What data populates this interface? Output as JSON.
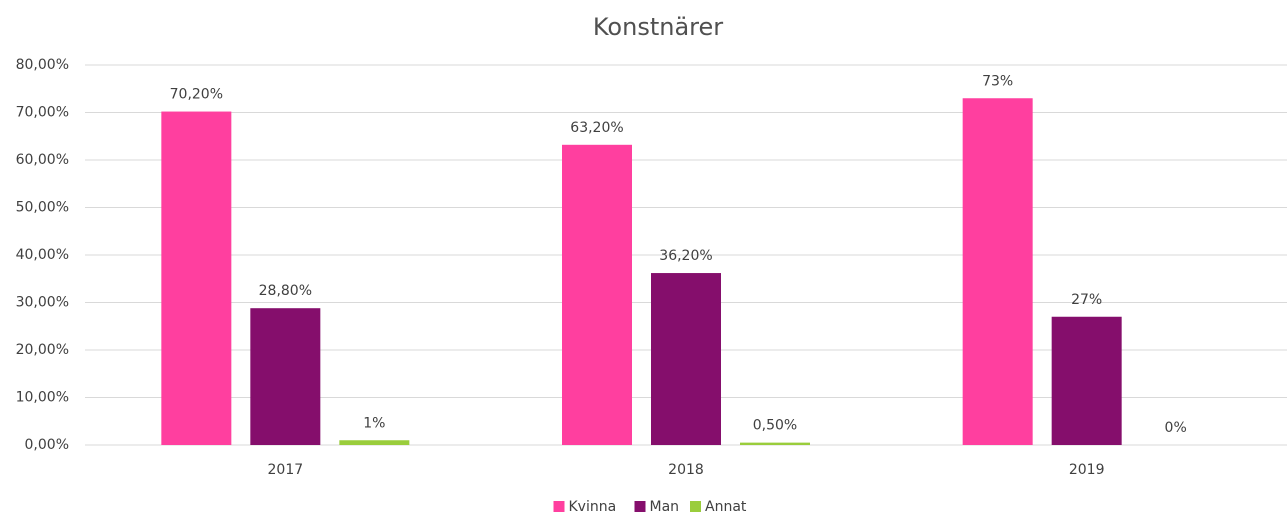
{
  "chart_data": {
    "type": "bar",
    "title": "Konstnärer",
    "categories": [
      "2017",
      "2018",
      "2019"
    ],
    "series": [
      {
        "name": "Kvinna",
        "color": "#ff3f9f",
        "values": [
          70.2,
          63.2,
          73
        ],
        "value_labels": [
          "70,20%",
          "63,20%",
          "73%"
        ]
      },
      {
        "name": "Man",
        "color": "#850e6c",
        "values": [
          28.8,
          36.2,
          27
        ],
        "value_labels": [
          "28,80%",
          "36,20%",
          "27%"
        ]
      },
      {
        "name": "Annat",
        "color": "#9acd3c",
        "values": [
          1,
          0.5,
          0
        ],
        "value_labels": [
          "1%",
          "0,50%",
          "0%"
        ]
      }
    ],
    "ylim": [
      0,
      80
    ],
    "yticks": [
      {
        "value": 0,
        "label": "0,00%"
      },
      {
        "value": 10,
        "label": "10,00%"
      },
      {
        "value": 20,
        "label": "20,00%"
      },
      {
        "value": 30,
        "label": "30,00%"
      },
      {
        "value": 40,
        "label": "40,00%"
      },
      {
        "value": 50,
        "label": "50,00%"
      },
      {
        "value": 60,
        "label": "60,00%"
      },
      {
        "value": 70,
        "label": "70,00%"
      },
      {
        "value": 80,
        "label": "80,00%"
      }
    ],
    "grid": true,
    "legend": "bottom"
  }
}
